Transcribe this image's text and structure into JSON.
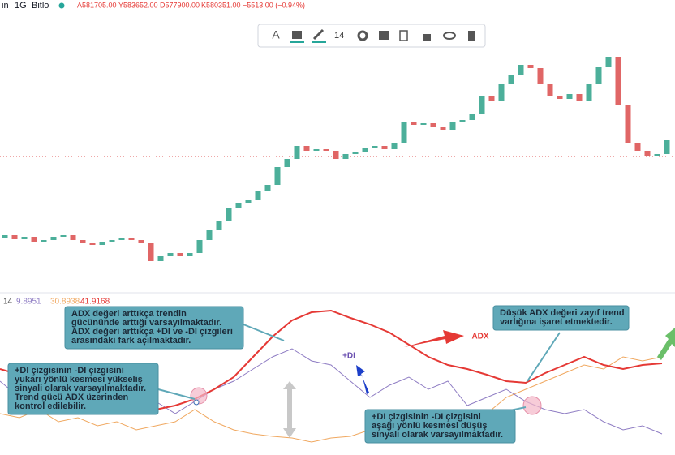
{
  "header": {
    "symbol": "in",
    "interval": "1G",
    "exchange": "Bitlo",
    "open": "A581705.00",
    "high": "Y583652.00",
    "low": "D577900.00",
    "close": "K580351.00",
    "change": "−5513.00 (−0.94%)"
  },
  "toolbar": {
    "font_size": "14"
  },
  "price": {
    "first_open": 540000,
    "closes": [
      541500,
      539500,
      540700,
      538300,
      539100,
      540700,
      541500,
      539100,
      537500,
      536700,
      538300,
      539100,
      539900,
      539100,
      537500,
      528700,
      531100,
      532700,
      531100,
      532700,
      539100,
      543900,
      548700,
      555100,
      557500,
      559100,
      563100,
      566300,
      575100,
      579100,
      585500,
      583100,
      583900,
      583100,
      579100,
      581500,
      582300,
      584700,
      585500,
      583900,
      587100,
      597500,
      595900,
      596700,
      595100,
      593500,
      597500,
      598300,
      601500,
      610300,
      607900,
      615900,
      620700,
      625500,
      623900,
      615900,
      610300,
      608700,
      611100,
      607900,
      615900,
      624700,
      629500,
      605500,
      587100,
      583100,
      580700,
      581500,
      588700
    ],
    "last": 580351,
    "up_color": "#4caf9a",
    "down_color": "#e06666"
  },
  "indicator": {
    "length": "14",
    "plus_di_value": "9.8951",
    "minus_di_value": "30.8938",
    "adx_value": "41.9168",
    "adx": {
      "color": "#e53935",
      "values": [
        40,
        37.2,
        34,
        30,
        26,
        22.8,
        20,
        18.8,
        20,
        22,
        25.2,
        30,
        36,
        46,
        56,
        64,
        68,
        68.8,
        65.2,
        62,
        58,
        52,
        46,
        42,
        40,
        37.2,
        34,
        33.2,
        38,
        42,
        46,
        42,
        40,
        42,
        42.8
      ]
    },
    "plus_di": {
      "color": "#8e7cc3",
      "values": [
        34,
        26,
        32,
        24,
        30,
        22,
        28,
        20,
        24,
        18,
        24,
        30,
        34,
        40,
        46,
        50,
        44,
        42,
        34,
        26,
        32,
        36,
        30,
        34,
        22,
        26,
        30,
        24,
        20,
        18,
        20,
        14,
        10,
        12,
        8
      ]
    },
    "minus_di": {
      "color": "#f0a860",
      "values": [
        18,
        16,
        20,
        14,
        16,
        12,
        14,
        10,
        12,
        14,
        20,
        14,
        10,
        8,
        6.8,
        6,
        4,
        6,
        6.8,
        10,
        12,
        10,
        13.2,
        16,
        20,
        18,
        26,
        30,
        34,
        38,
        42,
        40,
        46,
        44,
        46
      ]
    }
  },
  "labels": {
    "plus_di": "+DI",
    "adx": "ADX"
  },
  "annotations": [
    {
      "lines": [
        "ADX değeri arttıkça trendin",
        "gücününde arttığı varsayılmaktadır.",
        "ADX değeri arttıkça +DI ve -DI çizgileri",
        "arasındaki fark açılmaktadır."
      ]
    },
    {
      "lines": [
        "+DI çizgisinin -DI çizgisini",
        "yukarı yönlü kesmesi yükseliş",
        "sinyali olarak varsayılmaktadır.",
        "Trend gücü ADX üzerinden",
        "kontrol edilebilir."
      ]
    },
    {
      "lines": [
        "Düşük ADX değeri zayıf trend",
        "varlığına işaret etmektedir."
      ]
    },
    {
      "lines": [
        "+DI çizgisinin -DI çizgisini",
        "aşağı yönlü kesmesi düşüş",
        "sinyali olarak varsayılmaktadır."
      ]
    }
  ]
}
